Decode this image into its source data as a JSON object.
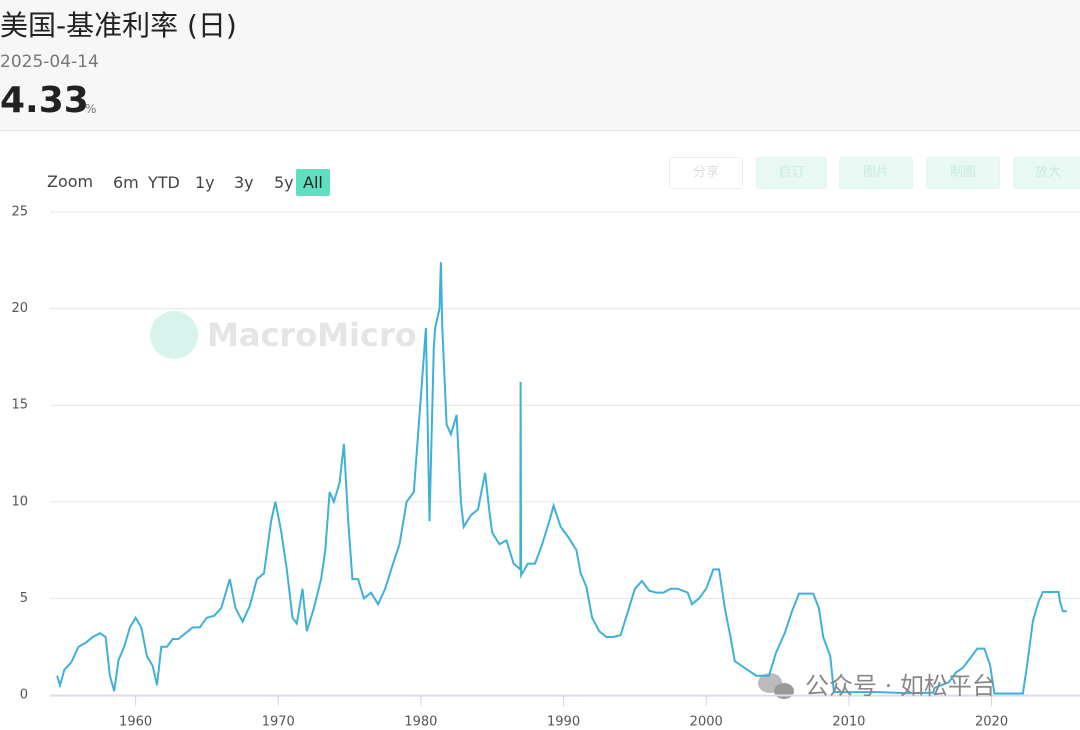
{
  "header": {
    "title": "美国-基准利率 (日)",
    "date": "2025-04-14",
    "value": "4.33",
    "unit": "%"
  },
  "toolbar": {
    "zoom_label": "Zoom",
    "ranges": [
      "6m",
      "YTD",
      "1y",
      "3y",
      "5y",
      "All"
    ],
    "active_range": 5
  },
  "actions": [
    "分享",
    "自订",
    "图片",
    "制图",
    "放大"
  ],
  "watermark": "MacroMicro",
  "overlay_text": "公众号 · 如松平台",
  "chart_data": {
    "type": "line",
    "color": "#3eb1d8",
    "grid": true,
    "xlim": [
      1954,
      2026.2
    ],
    "xticks": [
      1960,
      1970,
      1980,
      1990,
      2000,
      2010,
      2020
    ],
    "ylim": [
      0,
      25
    ],
    "yticks": [
      0,
      5,
      10,
      15,
      20,
      25
    ],
    "x": [
      1954.5,
      1954.7,
      1955.0,
      1955.5,
      1956.0,
      1956.5,
      1957.0,
      1957.5,
      1957.9,
      1958.2,
      1958.5,
      1958.8,
      1959.2,
      1959.6,
      1960.0,
      1960.4,
      1960.8,
      1961.2,
      1961.5,
      1961.8,
      1962.2,
      1962.6,
      1963.0,
      1963.5,
      1964.0,
      1964.5,
      1965.0,
      1965.5,
      1966.0,
      1966.6,
      1967.0,
      1967.5,
      1968.0,
      1968.5,
      1969.0,
      1969.5,
      1969.8,
      1970.2,
      1970.6,
      1971.0,
      1971.3,
      1971.7,
      1972.0,
      1972.5,
      1973.0,
      1973.3,
      1973.6,
      1973.9,
      1974.3,
      1974.6,
      1974.9,
      1975.2,
      1975.6,
      1976.0,
      1976.5,
      1977.0,
      1977.5,
      1978.0,
      1978.5,
      1979.0,
      1979.5,
      1979.8,
      1980.2,
      1980.35,
      1980.6,
      1980.9,
      1981.0,
      1981.3,
      1981.4,
      1981.5,
      1981.8,
      1982.1,
      1982.5,
      1982.8,
      1983.0,
      1983.5,
      1984.0,
      1984.5,
      1984.8,
      1985.0,
      1985.5,
      1986.0,
      1986.5,
      1986.97,
      1986.99,
      1987.02,
      1987.5,
      1988.0,
      1988.5,
      1989.0,
      1989.3,
      1989.8,
      1990.3,
      1990.9,
      1991.2,
      1991.6,
      1992.0,
      1992.5,
      1993.0,
      1993.5,
      1994.0,
      1994.5,
      1995.0,
      1995.5,
      1996.0,
      1996.5,
      1997.0,
      1997.5,
      1998.0,
      1998.7,
      1999.0,
      1999.5,
      2000.0,
      2000.5,
      2000.9,
      2001.3,
      2001.7,
      2002.0,
      2002.9,
      2003.5,
      2004.4,
      2004.9,
      2005.5,
      2006.0,
      2006.5,
      2007.5,
      2007.9,
      2008.2,
      2008.7,
      2008.95,
      2010.0,
      2012.0,
      2014.0,
      2015.9,
      2016.0,
      2017.0,
      2017.5,
      2018.0,
      2018.5,
      2019.0,
      2019.5,
      2019.9,
      2020.2,
      2021.0,
      2022.2,
      2022.5,
      2022.9,
      2023.3,
      2023.6,
      2024.7,
      2024.8,
      2025.0,
      2025.28
    ],
    "values": [
      1.0,
      0.5,
      1.3,
      1.7,
      2.5,
      2.7,
      3.0,
      3.2,
      3.0,
      1.0,
      0.2,
      1.8,
      2.5,
      3.5,
      4.0,
      3.5,
      2.0,
      1.5,
      0.5,
      2.5,
      2.5,
      2.9,
      2.9,
      3.2,
      3.5,
      3.5,
      4.0,
      4.1,
      4.5,
      6.0,
      4.5,
      3.8,
      4.6,
      6.0,
      6.3,
      9.0,
      10.0,
      8.5,
      6.5,
      4.0,
      3.7,
      5.5,
      3.3,
      4.5,
      6.0,
      7.5,
      10.5,
      10.0,
      11.0,
      13.0,
      9.0,
      6.0,
      6.0,
      5.0,
      5.3,
      4.7,
      5.5,
      6.7,
      7.8,
      10.0,
      10.5,
      13.5,
      17.5,
      19.0,
      9.0,
      18.0,
      19.0,
      20.0,
      22.4,
      19.0,
      14.0,
      13.5,
      14.5,
      10.0,
      8.7,
      9.3,
      9.6,
      11.5,
      9.5,
      8.4,
      7.8,
      8.0,
      6.8,
      6.5,
      16.2,
      6.2,
      6.8,
      6.8,
      7.8,
      9.0,
      9.8,
      8.7,
      8.2,
      7.5,
      6.3,
      5.6,
      4.0,
      3.3,
      3.0,
      3.0,
      3.1,
      4.3,
      5.5,
      5.9,
      5.4,
      5.3,
      5.3,
      5.5,
      5.5,
      5.3,
      4.7,
      5.0,
      5.5,
      6.5,
      6.5,
      4.5,
      3.0,
      1.75,
      1.3,
      1.0,
      1.0,
      2.2,
      3.2,
      4.3,
      5.25,
      5.25,
      4.5,
      3.0,
      2.0,
      0.15,
      0.15,
      0.15,
      0.1,
      0.12,
      0.37,
      0.66,
      1.16,
      1.42,
      1.91,
      2.4,
      2.4,
      1.55,
      0.08,
      0.08,
      0.08,
      1.58,
      3.83,
      4.83,
      5.33,
      5.33,
      4.83,
      4.33,
      4.33
    ]
  }
}
